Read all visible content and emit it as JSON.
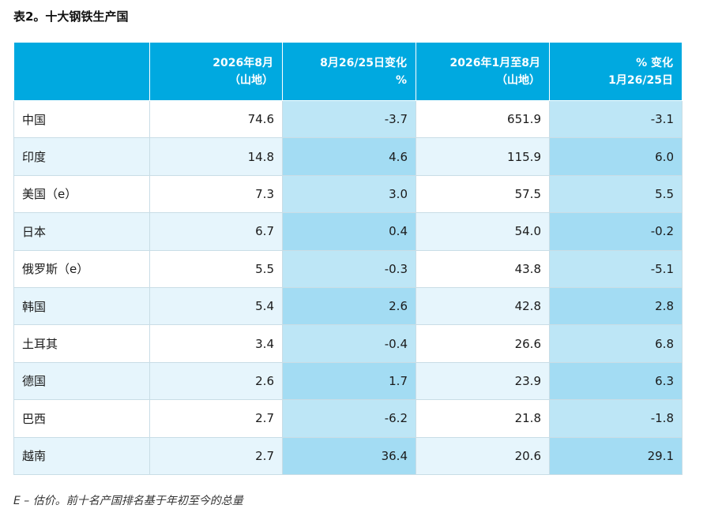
{
  "title": "表2。十大钢铁生产国",
  "header": {
    "c0": "",
    "c1": [
      "2026年8月",
      "（山地）"
    ],
    "c2": [
      "8月26/25日变化",
      "%"
    ],
    "c3": [
      "2026年1月至8月",
      "（山地）"
    ],
    "c4": [
      "% 变化",
      "1月26/25日"
    ]
  },
  "rows": [
    {
      "country": "中国",
      "aug": "74.6",
      "aug_chg": "-3.7",
      "ytd": "651.9",
      "ytd_chg": "-3.1"
    },
    {
      "country": "印度",
      "aug": "14.8",
      "aug_chg": "4.6",
      "ytd": "115.9",
      "ytd_chg": "6.0"
    },
    {
      "country": "美国（e）",
      "aug": "7.3",
      "aug_chg": "3.0",
      "ytd": "57.5",
      "ytd_chg": "5.5"
    },
    {
      "country": "日本",
      "aug": "6.7",
      "aug_chg": "0.4",
      "ytd": "54.0",
      "ytd_chg": "-0.2"
    },
    {
      "country": "俄罗斯（e）",
      "aug": "5.5",
      "aug_chg": "-0.3",
      "ytd": "43.8",
      "ytd_chg": "-5.1"
    },
    {
      "country": "韩国",
      "aug": "5.4",
      "aug_chg": "2.6",
      "ytd": "42.8",
      "ytd_chg": "2.8"
    },
    {
      "country": "土耳其",
      "aug": "3.4",
      "aug_chg": "-0.4",
      "ytd": "26.6",
      "ytd_chg": "6.8"
    },
    {
      "country": "德国",
      "aug": "2.6",
      "aug_chg": "1.7",
      "ytd": "23.9",
      "ytd_chg": "6.3"
    },
    {
      "country": "巴西",
      "aug": "2.7",
      "aug_chg": "-6.2",
      "ytd": "21.8",
      "ytd_chg": "-1.8"
    },
    {
      "country": "越南",
      "aug": "2.7",
      "aug_chg": "36.4",
      "ytd": "20.6",
      "ytd_chg": "29.1"
    }
  ],
  "footnote": "E – 估价。前十名产国排名基于年初至今的总量",
  "colors": {
    "header_bg": "#00a9e0",
    "row_light": "#ffffff",
    "row_tint": "#e6f5fc",
    "change_col_light": "#bde6f6",
    "change_col_dark": "#a3dcf3"
  }
}
